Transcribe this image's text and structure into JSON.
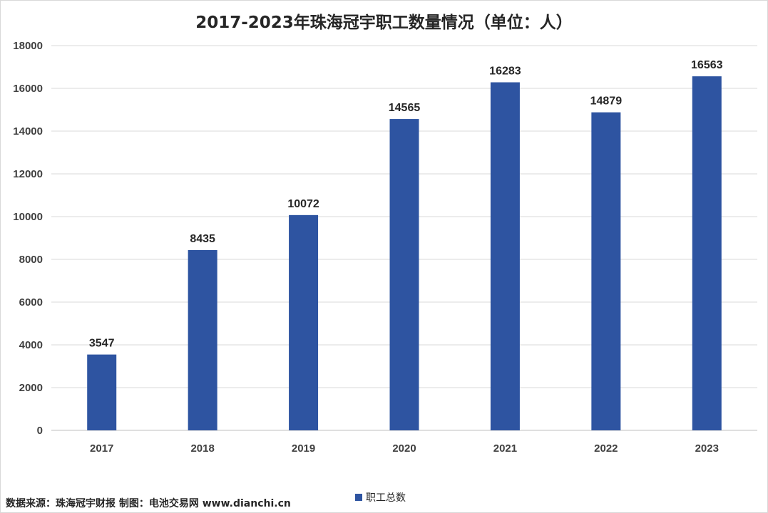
{
  "chart_data": {
    "type": "bar",
    "title": "2017-2023年珠海冠宇职工数量情况（单位：人）",
    "categories": [
      "2017",
      "2018",
      "2019",
      "2020",
      "2021",
      "2022",
      "2023"
    ],
    "series": [
      {
        "name": "职工总数",
        "values": [
          3547,
          8435,
          10072,
          14565,
          16283,
          14879,
          16563
        ]
      }
    ],
    "ylim": [
      0,
      18000
    ],
    "yticks": [
      0,
      2000,
      4000,
      6000,
      8000,
      10000,
      12000,
      14000,
      16000,
      18000
    ],
    "grid": true,
    "legend_position": "bottom",
    "data_labels": true,
    "bar_color": "#2e54a1"
  },
  "source_note": "数据来源：珠海冠宇财报  制图：电池交易网 www.dianchi.cn"
}
